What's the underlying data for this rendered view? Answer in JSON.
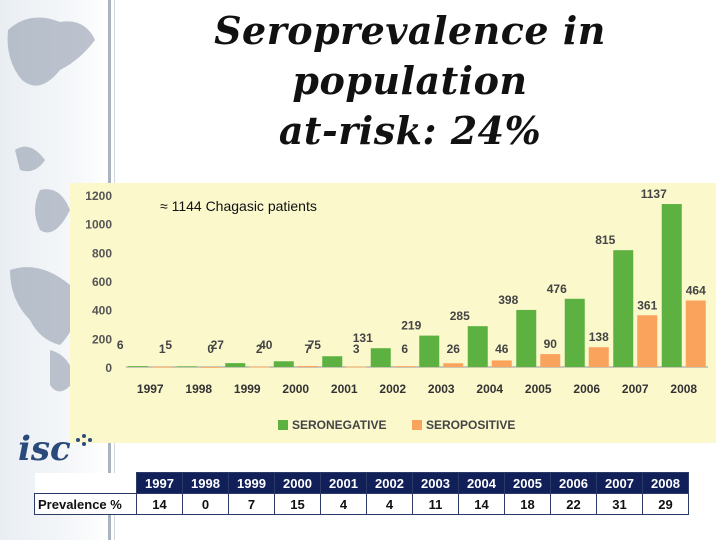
{
  "slide": {
    "title_line1": "Seroprevalence in population",
    "title_line2": "at-risk: 24%"
  },
  "logo": {
    "text": "isc"
  },
  "chart_data": {
    "type": "bar",
    "categories": [
      "1997",
      "1998",
      "1999",
      "2000",
      "2001",
      "2002",
      "2003",
      "2004",
      "2005",
      "2006",
      "2007",
      "2008"
    ],
    "series": [
      {
        "name": "SERONEGATIVE",
        "color": "#5cb140",
        "values": [
          6,
          5,
          27,
          40,
          75,
          131,
          219,
          285,
          398,
          476,
          815,
          1137
        ]
      },
      {
        "name": "SEROPOSITIVE",
        "color": "#f9a35c",
        "values": [
          1,
          0,
          2,
          7,
          3,
          6,
          26,
          46,
          90,
          138,
          361,
          464
        ]
      }
    ],
    "yticks": [
      0,
      200,
      400,
      600,
      800,
      1000,
      1200
    ],
    "ylim": [
      0,
      1200
    ],
    "annotation": "≈ 1144 Chagasic patients",
    "legend_position": "bottom",
    "grid": false
  },
  "prevalence_table": {
    "row_label": "Prevalence %",
    "years": [
      "1997",
      "1998",
      "1999",
      "2000",
      "2001",
      "2002",
      "2003",
      "2004",
      "2005",
      "2006",
      "2007",
      "2008"
    ],
    "values": [
      "14",
      "0",
      "7",
      "15",
      "4",
      "4",
      "11",
      "14",
      "18",
      "22",
      "31",
      "29"
    ]
  }
}
